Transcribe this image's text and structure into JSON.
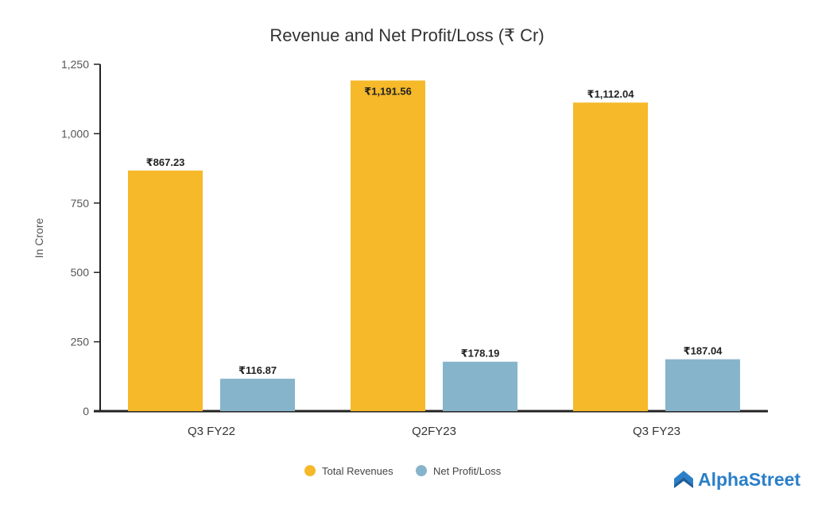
{
  "chart_data": {
    "type": "bar",
    "title": "Revenue and Net Profit/Loss (₹ Cr)",
    "ylabel": "In Crore",
    "xlabel": "",
    "categories": [
      "Q3 FY22",
      "Q2FY23",
      "Q3 FY23"
    ],
    "series": [
      {
        "name": "Total Revenues",
        "values": [
          867.23,
          1191.56,
          1112.04
        ],
        "labels": [
          "₹867.23",
          "₹1,191.56",
          "₹1,112.04"
        ],
        "color": "#F5B92A"
      },
      {
        "name": "Net Profit/Loss",
        "values": [
          116.87,
          178.19,
          187.04
        ],
        "labels": [
          "₹116.87",
          "₹178.19",
          "₹187.04"
        ],
        "color": "#86B4CA"
      }
    ],
    "ylim": [
      0,
      1250
    ],
    "yticks": [
      0,
      250,
      500,
      750,
      1000,
      1250
    ],
    "ytick_labels": [
      "0",
      "250",
      "500",
      "750",
      "1,000",
      "1,250"
    ],
    "grid": false,
    "legend_position": "bottom-center"
  },
  "brand": {
    "name": "AlphaStreet",
    "color": "#2A7FC9"
  }
}
